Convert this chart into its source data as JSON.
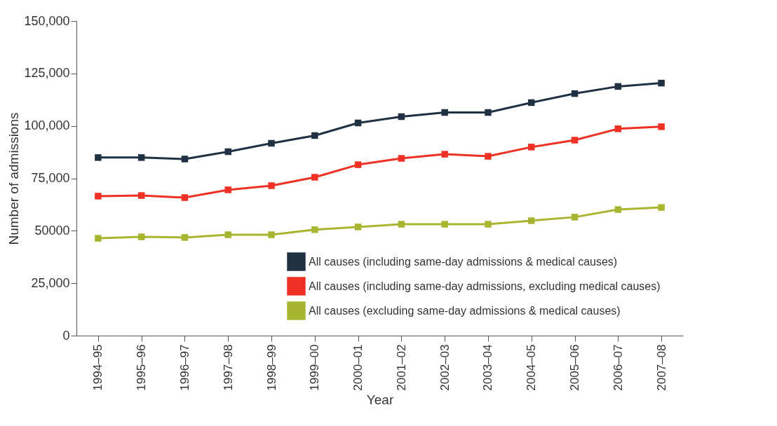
{
  "chart_data": {
    "type": "line",
    "xlabel": "Year",
    "ylabel": "Number of admissions",
    "categories": [
      "1994–95",
      "1995–96",
      "1996–97",
      "1997–98",
      "1998–99",
      "1999–00",
      "2000–01",
      "2001–02",
      "2002–03",
      "2003–04",
      "2004–05",
      "2005–06",
      "2006–07",
      "2007–08"
    ],
    "series": [
      {
        "name": "All causes (including same-day admissions & medical causes)",
        "color": "#1f3142",
        "values": [
          84900,
          84900,
          84200,
          87700,
          91700,
          95400,
          101400,
          104400,
          106400,
          106400,
          111100,
          115400,
          118800,
          120400
        ]
      },
      {
        "name": "All causes (including same-day admissions, excluding medical causes)",
        "color": "#ee3124",
        "values": [
          66500,
          66800,
          65800,
          69500,
          71500,
          75500,
          81500,
          84500,
          86500,
          85500,
          89900,
          93200,
          98600,
          99600
        ]
      },
      {
        "name": "All causes (excluding same-day admissions & medical causes)",
        "color": "#a8b530",
        "values": [
          46400,
          47100,
          46800,
          48100,
          48100,
          50500,
          51800,
          53100,
          53100,
          53100,
          54800,
          56500,
          60100,
          61100
        ]
      }
    ],
    "ylim": [
      0,
      150000
    ],
    "yticks": [
      0,
      {
        "value": 25000,
        "label": "25,000"
      },
      50000,
      {
        "value": 75000,
        "label": "75,000"
      },
      {
        "value": 100000,
        "label": "100,000"
      },
      {
        "value": 125000,
        "label": "125,000"
      },
      {
        "value": 150000,
        "label": "150,000"
      }
    ],
    "marker": "square",
    "line_style": "solid",
    "legend": "bottom right",
    "grid": false
  }
}
